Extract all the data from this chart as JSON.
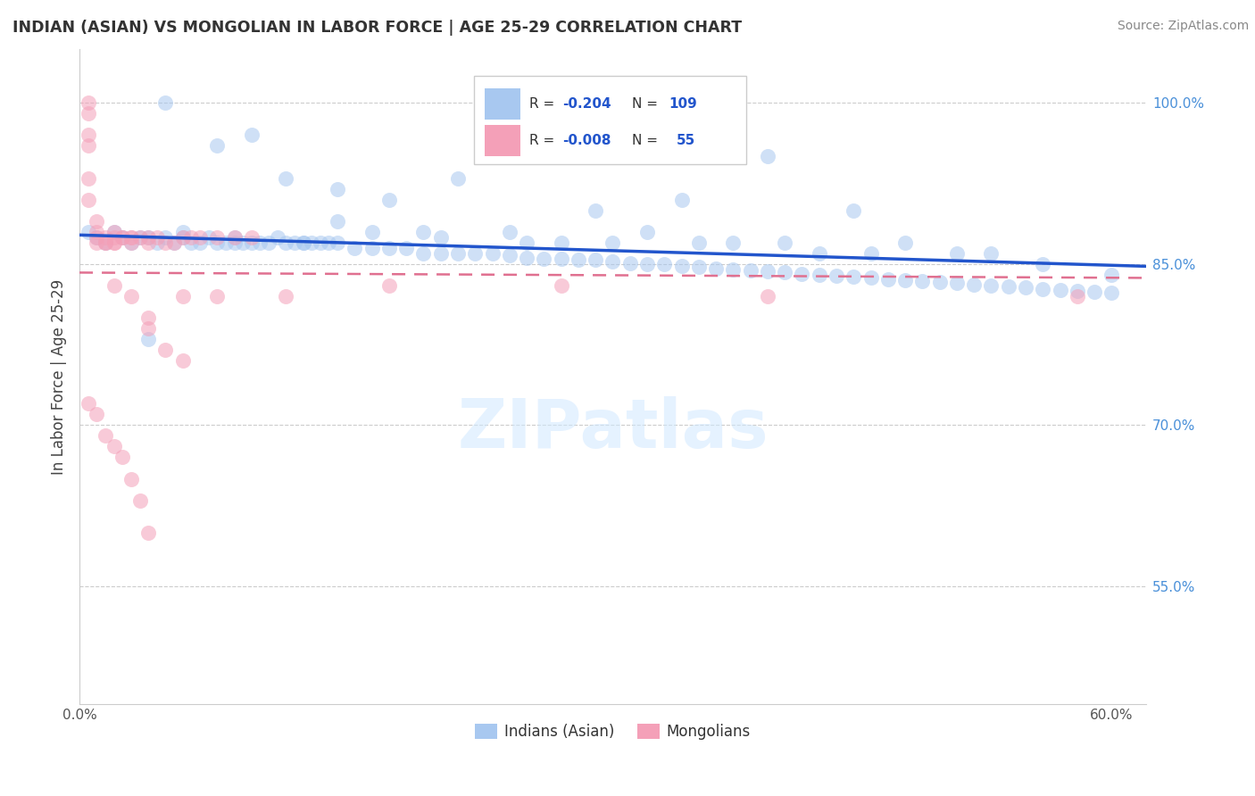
{
  "title": "INDIAN (ASIAN) VS MONGOLIAN IN LABOR FORCE | AGE 25-29 CORRELATION CHART",
  "source": "Source: ZipAtlas.com",
  "ylabel": "In Labor Force | Age 25-29",
  "xlim": [
    0.0,
    0.62
  ],
  "ylim": [
    0.44,
    1.05
  ],
  "color_blue": "#A8C8F0",
  "color_pink": "#F4A0B8",
  "trend_blue": "#2255CC",
  "trend_pink": "#E07090",
  "watermark": "ZIPatlas",
  "blue_x": [
    0.005,
    0.01,
    0.015,
    0.02,
    0.025,
    0.03,
    0.035,
    0.04,
    0.045,
    0.05,
    0.055,
    0.06,
    0.065,
    0.07,
    0.075,
    0.08,
    0.085,
    0.09,
    0.095,
    0.1,
    0.105,
    0.11,
    0.115,
    0.12,
    0.125,
    0.13,
    0.135,
    0.14,
    0.145,
    0.15,
    0.16,
    0.17,
    0.18,
    0.19,
    0.2,
    0.21,
    0.22,
    0.23,
    0.24,
    0.25,
    0.26,
    0.27,
    0.28,
    0.29,
    0.3,
    0.31,
    0.32,
    0.33,
    0.34,
    0.35,
    0.36,
    0.37,
    0.38,
    0.39,
    0.4,
    0.41,
    0.42,
    0.43,
    0.44,
    0.45,
    0.46,
    0.47,
    0.48,
    0.49,
    0.5,
    0.51,
    0.52,
    0.53,
    0.54,
    0.55,
    0.56,
    0.57,
    0.58,
    0.59,
    0.6,
    0.08,
    0.12,
    0.15,
    0.18,
    0.22,
    0.25,
    0.3,
    0.35,
    0.4,
    0.45,
    0.05,
    0.1,
    0.15,
    0.2,
    0.28,
    0.33,
    0.38,
    0.43,
    0.48,
    0.53,
    0.06,
    0.09,
    0.13,
    0.17,
    0.21,
    0.26,
    0.31,
    0.36,
    0.41,
    0.46,
    0.51,
    0.56,
    0.6,
    0.04
  ],
  "blue_y": [
    0.88,
    0.875,
    0.87,
    0.88,
    0.875,
    0.87,
    0.875,
    0.875,
    0.87,
    0.875,
    0.87,
    0.875,
    0.87,
    0.87,
    0.875,
    0.87,
    0.87,
    0.875,
    0.87,
    0.87,
    0.87,
    0.87,
    0.875,
    0.87,
    0.87,
    0.87,
    0.87,
    0.87,
    0.87,
    0.87,
    0.865,
    0.865,
    0.865,
    0.865,
    0.86,
    0.86,
    0.86,
    0.86,
    0.86,
    0.858,
    0.856,
    0.855,
    0.855,
    0.854,
    0.854,
    0.852,
    0.851,
    0.85,
    0.85,
    0.848,
    0.847,
    0.846,
    0.845,
    0.844,
    0.843,
    0.842,
    0.841,
    0.84,
    0.839,
    0.838,
    0.837,
    0.836,
    0.835,
    0.834,
    0.833,
    0.832,
    0.831,
    0.83,
    0.829,
    0.828,
    0.827,
    0.826,
    0.825,
    0.824,
    0.823,
    0.96,
    0.93,
    0.92,
    0.91,
    0.93,
    0.88,
    0.9,
    0.91,
    0.95,
    0.9,
    1.0,
    0.97,
    0.89,
    0.88,
    0.87,
    0.88,
    0.87,
    0.86,
    0.87,
    0.86,
    0.88,
    0.87,
    0.87,
    0.88,
    0.875,
    0.87,
    0.87,
    0.87,
    0.87,
    0.86,
    0.86,
    0.85,
    0.84,
    0.78
  ],
  "pink_x": [
    0.005,
    0.005,
    0.005,
    0.005,
    0.005,
    0.005,
    0.01,
    0.01,
    0.01,
    0.01,
    0.015,
    0.015,
    0.015,
    0.02,
    0.02,
    0.02,
    0.02,
    0.025,
    0.025,
    0.03,
    0.03,
    0.03,
    0.035,
    0.04,
    0.04,
    0.045,
    0.05,
    0.055,
    0.06,
    0.065,
    0.07,
    0.08,
    0.09,
    0.1,
    0.02,
    0.03,
    0.04,
    0.05,
    0.06,
    0.005,
    0.01,
    0.015,
    0.02,
    0.025,
    0.03,
    0.035,
    0.04,
    0.58,
    0.4,
    0.28,
    0.18,
    0.12,
    0.08,
    0.06,
    0.04
  ],
  "pink_y": [
    1.0,
    0.99,
    0.97,
    0.96,
    0.93,
    0.91,
    0.89,
    0.88,
    0.875,
    0.87,
    0.875,
    0.87,
    0.87,
    0.88,
    0.875,
    0.87,
    0.87,
    0.875,
    0.875,
    0.875,
    0.875,
    0.87,
    0.875,
    0.875,
    0.87,
    0.875,
    0.87,
    0.87,
    0.875,
    0.875,
    0.875,
    0.875,
    0.875,
    0.875,
    0.83,
    0.82,
    0.79,
    0.77,
    0.76,
    0.72,
    0.71,
    0.69,
    0.68,
    0.67,
    0.65,
    0.63,
    0.6,
    0.82,
    0.82,
    0.83,
    0.83,
    0.82,
    0.82,
    0.82,
    0.8
  ]
}
